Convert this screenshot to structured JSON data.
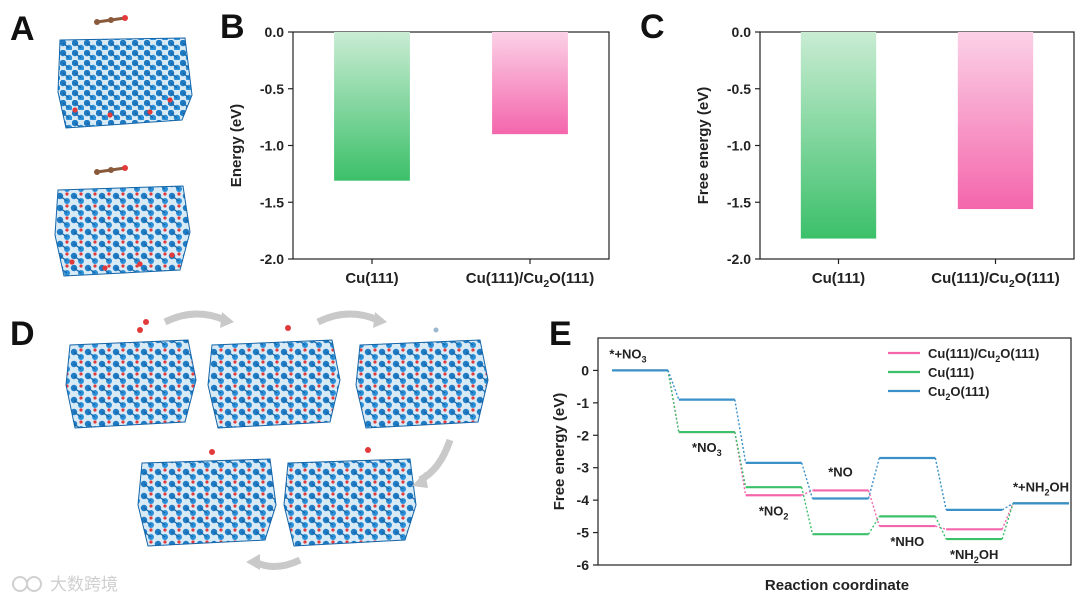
{
  "panels": {
    "A": "A",
    "B": "B",
    "C": "C",
    "D": "D",
    "E": "E"
  },
  "watermark": "大数跨境",
  "colors": {
    "green": "#3cc06a",
    "pink": "#f466ac",
    "blue": "#3a90c9",
    "atom_blue": "#1f7cc4",
    "atom_red": "#e23a3a"
  },
  "chart_data": [
    {
      "id": "B",
      "type": "bar",
      "title": "",
      "xlabel": "",
      "ylabel": "Energy (eV)",
      "categories": [
        "Cu(111)",
        "Cu(111)/Cu2O(111)"
      ],
      "values": [
        -1.31,
        -0.9
      ],
      "ylim": [
        -2.0,
        0.0
      ],
      "yticks": [
        "0.0",
        "-0.5",
        "-1.0",
        "-1.5",
        "-2.0"
      ],
      "bar_colors": [
        "green",
        "pink"
      ]
    },
    {
      "id": "C",
      "type": "bar",
      "title": "",
      "xlabel": "",
      "ylabel": "Free energy (eV)",
      "categories": [
        "Cu(111)",
        "Cu(111)/Cu2O(111)"
      ],
      "values": [
        -1.82,
        -1.56
      ],
      "ylim": [
        -2.0,
        0.0
      ],
      "yticks": [
        "0.0",
        "-0.5",
        "-1.0",
        "-1.5",
        "-2.0"
      ],
      "bar_colors": [
        "green",
        "pink"
      ]
    },
    {
      "id": "E",
      "type": "line",
      "title": "",
      "xlabel": "Reaction coordinate",
      "ylabel": "Free energy (eV)",
      "ylim": [
        -6,
        1
      ],
      "yticks": [
        "0",
        "-1",
        "-2",
        "-3",
        "-4",
        "-5",
        "-6"
      ],
      "stages": [
        "*+NO3",
        "*NO3",
        "*NO2",
        "*NO",
        "*NHO",
        "*NH2OH",
        "*+NH2OH"
      ],
      "series": [
        {
          "name": "Cu(111)/Cu2O(111)",
          "color": "pink",
          "values": [
            0.0,
            -1.9,
            -3.85,
            -3.7,
            -4.8,
            -4.9,
            -4.1
          ]
        },
        {
          "name": "Cu(111)",
          "color": "green",
          "values": [
            0.0,
            -1.9,
            -3.6,
            -5.05,
            -4.5,
            -5.2,
            -4.1
          ]
        },
        {
          "name": "Cu2O(111)",
          "color": "blue",
          "values": [
            0.0,
            -0.9,
            -2.85,
            -3.95,
            -2.7,
            -4.3,
            -4.1
          ]
        }
      ]
    }
  ]
}
